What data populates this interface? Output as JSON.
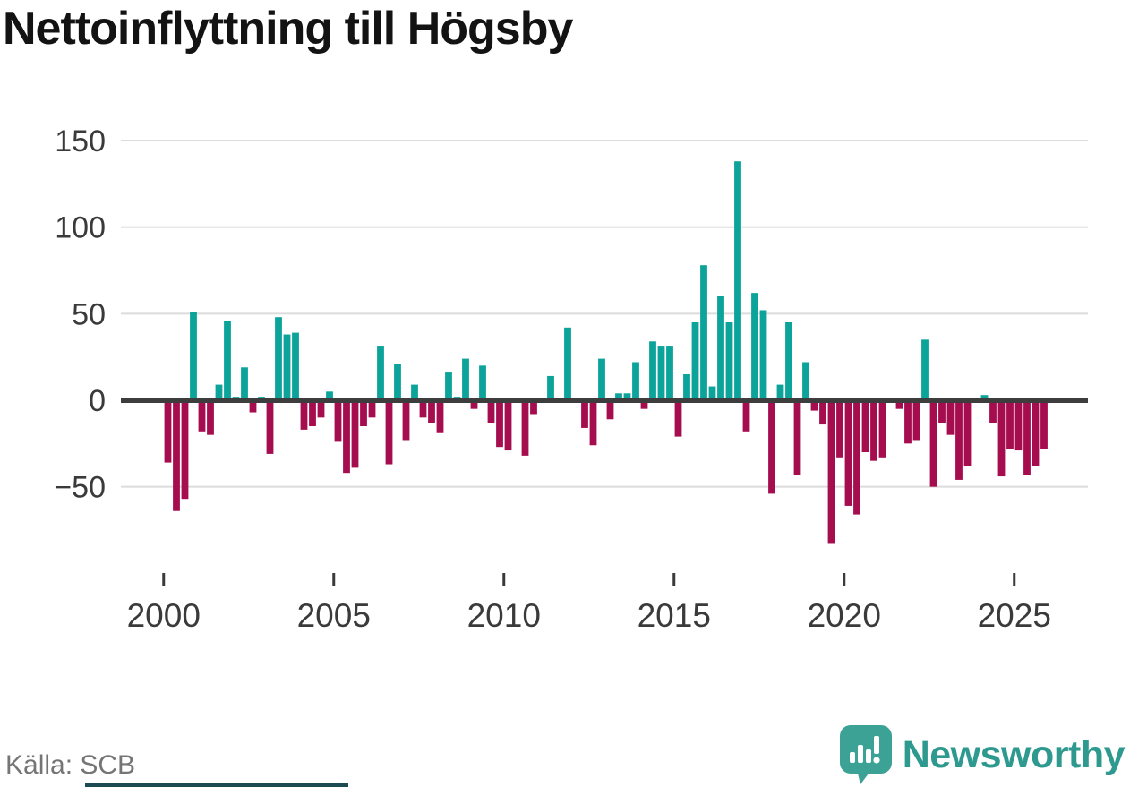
{
  "header": {
    "title": "Nettoinflyttning till Högsby"
  },
  "footer": {
    "source_label": "Källa: SCB",
    "brand_name": "Newsworthy"
  },
  "colors": {
    "positive_bar": "#0ba39a",
    "negative_bar": "#a50d4f",
    "axis_line": "#3d3d3d",
    "gridline": "#dcdcdc",
    "tick_label": "#3a3a3a",
    "source_text": "#757575",
    "brand_teal": "#2e998f",
    "brand_mark": "#3ba295",
    "bottom_strip": "#1c4b54"
  },
  "chart_data": {
    "type": "bar",
    "title": "Nettoinflyttning till Högsby",
    "xlabel": "",
    "ylabel": "",
    "frequency": "quarterly",
    "x_range": "2000 Q1 – 2025 Q4",
    "ylim": [
      -90,
      155
    ],
    "grid": "horizontal",
    "legend": "none",
    "zero_values_not_drawn": true,
    "yticks": [
      {
        "value": 150,
        "label": "150"
      },
      {
        "value": 100,
        "label": "100"
      },
      {
        "value": 50,
        "label": "50"
      },
      {
        "value": 0,
        "label": "0"
      },
      {
        "value": -50,
        "label": "−50"
      }
    ],
    "xticks": [
      {
        "year": 2000,
        "label": "2000"
      },
      {
        "year": 2005,
        "label": "2005"
      },
      {
        "year": 2010,
        "label": "2010"
      },
      {
        "year": 2015,
        "label": "2015"
      },
      {
        "year": 2020,
        "label": "2020"
      },
      {
        "year": 2025,
        "label": "2025"
      }
    ],
    "series": [
      {
        "year": 2000,
        "values": [
          -36,
          -64,
          -57,
          51
        ]
      },
      {
        "year": 2001,
        "values": [
          -18,
          -20,
          9,
          46
        ]
      },
      {
        "year": 2002,
        "values": [
          2,
          19,
          -7,
          2
        ]
      },
      {
        "year": 2003,
        "values": [
          -31,
          48,
          38,
          39
        ]
      },
      {
        "year": 2004,
        "values": [
          -17,
          -15,
          -10,
          5
        ]
      },
      {
        "year": 2005,
        "values": [
          -24,
          -42,
          -39,
          -15
        ]
      },
      {
        "year": 2006,
        "values": [
          -10,
          31,
          -37,
          21
        ]
      },
      {
        "year": 2007,
        "values": [
          -23,
          9,
          -10,
          -13
        ]
      },
      {
        "year": 2008,
        "values": [
          -19,
          16,
          2,
          24
        ]
      },
      {
        "year": 2009,
        "values": [
          -5,
          20,
          -13,
          -27
        ]
      },
      {
        "year": 2010,
        "values": [
          -29,
          0,
          -32,
          -8
        ]
      },
      {
        "year": 2011,
        "values": [
          0,
          14,
          0,
          42
        ]
      },
      {
        "year": 2012,
        "values": [
          0,
          -16,
          -26,
          24
        ]
      },
      {
        "year": 2013,
        "values": [
          -11,
          4,
          4,
          22
        ]
      },
      {
        "year": 2014,
        "values": [
          -5,
          34,
          31,
          31
        ]
      },
      {
        "year": 2015,
        "values": [
          -21,
          15,
          45,
          78
        ]
      },
      {
        "year": 2016,
        "values": [
          8,
          60,
          45,
          138
        ]
      },
      {
        "year": 2017,
        "values": [
          -18,
          62,
          52,
          -54
        ]
      },
      {
        "year": 2018,
        "values": [
          9,
          45,
          -43,
          22
        ]
      },
      {
        "year": 2019,
        "values": [
          -6,
          -14,
          -83,
          -33
        ]
      },
      {
        "year": 2020,
        "values": [
          -61,
          -66,
          -30,
          -35
        ]
      },
      {
        "year": 2021,
        "values": [
          -33,
          0,
          -5,
          -25
        ]
      },
      {
        "year": 2022,
        "values": [
          -23,
          35,
          -50,
          -13
        ]
      },
      {
        "year": 2023,
        "values": [
          -20,
          -46,
          -38,
          0
        ]
      },
      {
        "year": 2024,
        "values": [
          3,
          -13,
          -44,
          -28
        ]
      },
      {
        "year": 2025,
        "values": [
          -29,
          -43,
          -38,
          -28
        ]
      }
    ]
  }
}
